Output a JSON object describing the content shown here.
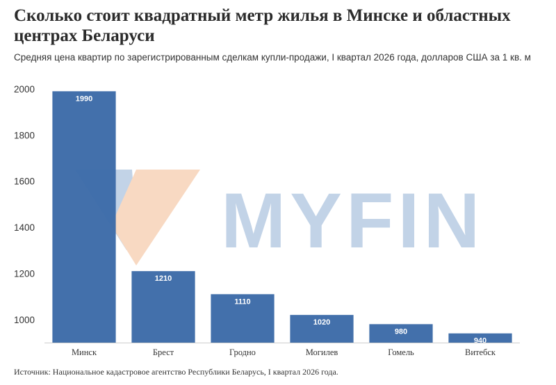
{
  "chart_data": {
    "type": "bar",
    "title": "Сколько стоит квадратный метр жилья в Минске и областных центрах Беларуси",
    "subtitle": "Средняя цена квартир по зарегистрированным сделкам купли-продажи, I квартал 2026 года, долларов США за 1 кв. м",
    "source": "Источник: Национальное кадастровое агентство Республики Беларусь, I квартал 2026 года.",
    "categories": [
      "Минск",
      "Брест",
      "Гродно",
      "Могилев",
      "Гомель",
      "Витебск"
    ],
    "values": [
      1990,
      1210,
      1110,
      1020,
      980,
      940
    ],
    "ylim": [
      900,
      2000
    ],
    "yticks": [
      1000,
      1200,
      1400,
      1600,
      1800,
      2000
    ],
    "bar_color": "#3d6ba8",
    "grid": false,
    "legend": "none",
    "watermark": "MYFIN"
  }
}
